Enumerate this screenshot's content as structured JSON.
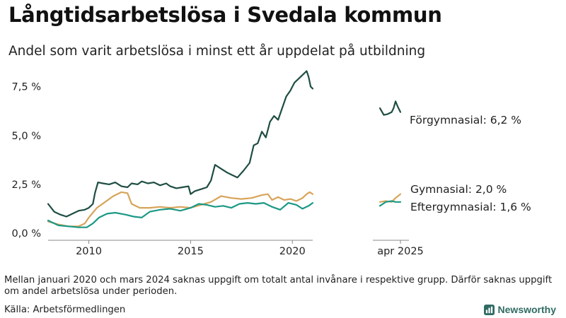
{
  "header": {
    "title": "Långtidsarbetslösa i Svedala kommun",
    "subtitle": "Andel som varit arbetslösa i minst ett år uppdelat på utbildning"
  },
  "footer": {
    "note": "Mellan januari 2020 och mars 2024 saknas uppgift om totalt antal invånare i respektive grupp. Därför saknas uppgift om andel arbetslösa under perioden.",
    "source": "Källa: Arbetsförmedlingen",
    "brand": "Newsworthy"
  },
  "colors": {
    "forgymnasial": "#1e4d43",
    "gymnasial": "#d7a45a",
    "eftergymnasial": "#1b9985",
    "axis": "#888888"
  },
  "chart_data": {
    "type": "line",
    "x_unit": "month (decimal year)",
    "x_axis": {
      "ticks": [
        {
          "value": 2010,
          "label": "2010"
        },
        {
          "value": 2015,
          "label": "2015"
        },
        {
          "value": 2020,
          "label": "2020"
        },
        {
          "value": 2025.25,
          "label": "apr 2025"
        }
      ],
      "break": [
        2021.0,
        2024.2
      ]
    },
    "y_axis": {
      "ylim": [
        0,
        8.5
      ],
      "ticks": [
        {
          "value": 0,
          "label": "0,0 %"
        },
        {
          "value": 2.5,
          "label": "2,5 %"
        },
        {
          "value": 5,
          "label": "5,0 %"
        },
        {
          "value": 7.5,
          "label": "7,5 %"
        }
      ]
    },
    "grid": false,
    "series": [
      {
        "name": "Förgymnasial",
        "color_key": "forgymnasial",
        "end_label": "Förgymnasial: 6,2 %",
        "segments": [
          [
            [
              2008.0,
              1.5
            ],
            [
              2008.3,
              1.1
            ],
            [
              2008.6,
              0.95
            ],
            [
              2008.9,
              0.85
            ],
            [
              2009.2,
              1.0
            ],
            [
              2009.5,
              1.15
            ],
            [
              2009.8,
              1.2
            ],
            [
              2010.0,
              1.3
            ],
            [
              2010.2,
              1.5
            ],
            [
              2010.3,
              2.05
            ],
            [
              2010.45,
              2.6
            ],
            [
              2010.7,
              2.55
            ],
            [
              2011.0,
              2.5
            ],
            [
              2011.3,
              2.6
            ],
            [
              2011.6,
              2.4
            ],
            [
              2011.9,
              2.35
            ],
            [
              2012.1,
              2.55
            ],
            [
              2012.4,
              2.5
            ],
            [
              2012.6,
              2.65
            ],
            [
              2012.9,
              2.55
            ],
            [
              2013.2,
              2.6
            ],
            [
              2013.5,
              2.45
            ],
            [
              2013.8,
              2.55
            ],
            [
              2014.0,
              2.4
            ],
            [
              2014.3,
              2.3
            ],
            [
              2014.6,
              2.35
            ],
            [
              2014.9,
              2.4
            ],
            [
              2015.0,
              2.0
            ],
            [
              2015.2,
              2.15
            ],
            [
              2015.5,
              2.25
            ],
            [
              2015.8,
              2.35
            ],
            [
              2016.0,
              2.7
            ],
            [
              2016.2,
              3.5
            ],
            [
              2016.5,
              3.3
            ],
            [
              2016.8,
              3.1
            ],
            [
              2017.0,
              3.0
            ],
            [
              2017.3,
              2.85
            ],
            [
              2017.6,
              3.2
            ],
            [
              2017.9,
              3.6
            ],
            [
              2018.1,
              4.5
            ],
            [
              2018.3,
              4.6
            ],
            [
              2018.5,
              5.2
            ],
            [
              2018.7,
              4.9
            ],
            [
              2018.9,
              5.7
            ],
            [
              2019.1,
              6.0
            ],
            [
              2019.3,
              5.8
            ],
            [
              2019.5,
              6.4
            ],
            [
              2019.7,
              7.0
            ],
            [
              2019.9,
              7.3
            ],
            [
              2020.1,
              7.7
            ],
            [
              2020.3,
              7.9
            ],
            [
              2020.5,
              8.1
            ],
            [
              2020.7,
              8.3
            ],
            [
              2020.8,
              8.0
            ],
            [
              2020.9,
              7.5
            ],
            [
              2021.0,
              7.4
            ]
          ],
          [
            [
              2024.2,
              6.4
            ],
            [
              2024.4,
              6.05
            ],
            [
              2024.6,
              6.1
            ],
            [
              2024.8,
              6.2
            ],
            [
              2024.9,
              6.4
            ],
            [
              2025.0,
              6.75
            ],
            [
              2025.1,
              6.5
            ],
            [
              2025.25,
              6.2
            ]
          ]
        ]
      },
      {
        "name": "Gymnasial",
        "color_key": "gymnasial",
        "end_label": "Gymnasial: 2,0 %",
        "segments": [
          [
            [
              2008.0,
              0.6
            ],
            [
              2008.5,
              0.45
            ],
            [
              2009.0,
              0.35
            ],
            [
              2009.5,
              0.35
            ],
            [
              2009.8,
              0.5
            ],
            [
              2010.0,
              0.8
            ],
            [
              2010.4,
              1.3
            ],
            [
              2010.8,
              1.6
            ],
            [
              2011.2,
              1.9
            ],
            [
              2011.6,
              2.1
            ],
            [
              2011.9,
              2.05
            ],
            [
              2012.1,
              1.5
            ],
            [
              2012.5,
              1.3
            ],
            [
              2013.0,
              1.3
            ],
            [
              2013.5,
              1.35
            ],
            [
              2014.0,
              1.3
            ],
            [
              2014.5,
              1.35
            ],
            [
              2015.0,
              1.3
            ],
            [
              2015.5,
              1.45
            ],
            [
              2016.0,
              1.6
            ],
            [
              2016.5,
              1.9
            ],
            [
              2017.0,
              1.8
            ],
            [
              2017.5,
              1.75
            ],
            [
              2018.0,
              1.8
            ],
            [
              2018.5,
              1.95
            ],
            [
              2018.8,
              2.0
            ],
            [
              2019.0,
              1.7
            ],
            [
              2019.3,
              1.85
            ],
            [
              2019.6,
              1.7
            ],
            [
              2019.9,
              1.75
            ],
            [
              2020.2,
              1.65
            ],
            [
              2020.5,
              1.8
            ],
            [
              2020.7,
              2.0
            ],
            [
              2020.85,
              2.1
            ],
            [
              2021.0,
              2.0
            ]
          ],
          [
            [
              2024.2,
              1.6
            ],
            [
              2024.5,
              1.65
            ],
            [
              2024.8,
              1.6
            ],
            [
              2025.0,
              1.8
            ],
            [
              2025.25,
              2.0
            ]
          ]
        ]
      },
      {
        "name": "Eftergymnasial",
        "color_key": "eftergymnasial",
        "end_label": "Eftergymnasial: 1,6 %",
        "segments": [
          [
            [
              2008.0,
              0.65
            ],
            [
              2008.5,
              0.4
            ],
            [
              2009.0,
              0.35
            ],
            [
              2009.5,
              0.3
            ],
            [
              2009.9,
              0.3
            ],
            [
              2010.2,
              0.5
            ],
            [
              2010.5,
              0.8
            ],
            [
              2010.9,
              1.0
            ],
            [
              2011.3,
              1.05
            ],
            [
              2011.8,
              0.95
            ],
            [
              2012.2,
              0.85
            ],
            [
              2012.6,
              0.8
            ],
            [
              2013.0,
              1.1
            ],
            [
              2013.5,
              1.2
            ],
            [
              2014.0,
              1.25
            ],
            [
              2014.5,
              1.15
            ],
            [
              2015.0,
              1.3
            ],
            [
              2015.4,
              1.5
            ],
            [
              2015.8,
              1.45
            ],
            [
              2016.2,
              1.35
            ],
            [
              2016.6,
              1.4
            ],
            [
              2017.0,
              1.3
            ],
            [
              2017.4,
              1.5
            ],
            [
              2017.8,
              1.55
            ],
            [
              2018.2,
              1.5
            ],
            [
              2018.6,
              1.55
            ],
            [
              2019.0,
              1.35
            ],
            [
              2019.4,
              1.2
            ],
            [
              2019.8,
              1.55
            ],
            [
              2020.2,
              1.45
            ],
            [
              2020.5,
              1.25
            ],
            [
              2020.8,
              1.4
            ],
            [
              2021.0,
              1.55
            ]
          ],
          [
            [
              2024.2,
              1.4
            ],
            [
              2024.5,
              1.6
            ],
            [
              2024.8,
              1.65
            ],
            [
              2025.0,
              1.6
            ],
            [
              2025.25,
              1.6
            ]
          ]
        ]
      }
    ]
  }
}
